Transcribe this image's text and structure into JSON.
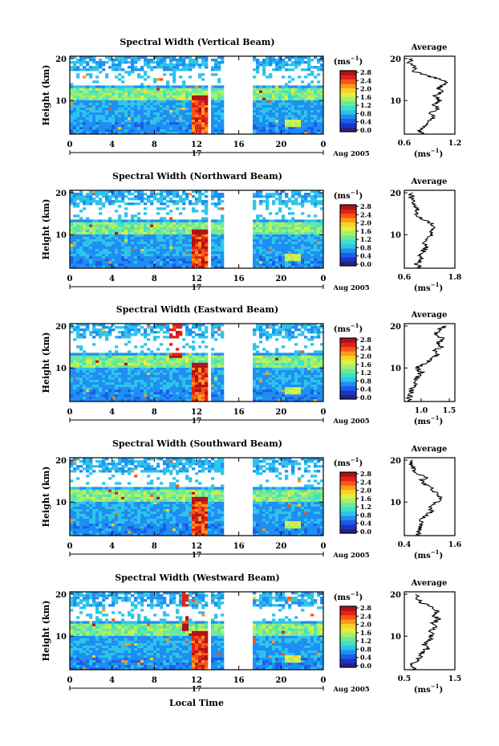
{
  "figure": {
    "shared": {
      "ylabel": "Height (km)",
      "avg_title": "Average",
      "avg_xlabel_base": "(ms",
      "avg_xlabel_exp": "−1",
      "avg_xlabel_close": ")",
      "cb_unit_base": "(ms",
      "cb_unit_exp": "−1",
      "cb_unit_close": ")",
      "time_ticks": [
        "0",
        "4",
        "8",
        "12",
        "16",
        "20",
        "0"
      ],
      "day_label": "17",
      "month_label": "Aug 2005",
      "height_ticks": [
        "10",
        "20"
      ],
      "colorbar_ticks": [
        "0.0",
        "0.4",
        "0.8",
        "1.2",
        "1.6",
        "2.0",
        "2.4",
        "2.8"
      ],
      "xlabel": "Local Time"
    },
    "colors": {
      "colormap": [
        "#27247e",
        "#1b33c8",
        "#1c5ce8",
        "#1f8ef2",
        "#2ec4ea",
        "#3fe0c8",
        "#6de89a",
        "#a6f06a",
        "#dff040",
        "#fbd226",
        "#fd9a1c",
        "#f85616",
        "#e0221a",
        "#b01218"
      ]
    }
  },
  "chart_data": [
    {
      "type": "heatmap",
      "title": "Spectral Width (Vertical Beam)",
      "x_range_hours": [
        0,
        24
      ],
      "y_range_km": [
        2,
        20
      ],
      "value_range": [
        0.0,
        2.8
      ],
      "data_gap_hours": [
        [
          13.1,
          13.3
        ],
        [
          14.5,
          17.3
        ]
      ],
      "average_profile": {
        "xticks": [
          "0.6",
          "1.2"
        ],
        "xlim": [
          0.6,
          1.2
        ],
        "height_km": [
          2,
          3,
          4,
          5,
          6,
          7,
          8,
          9,
          10,
          11,
          12,
          13,
          14,
          15,
          16,
          17,
          18,
          19,
          20
        ],
        "width_ms": [
          0.82,
          0.78,
          0.86,
          0.9,
          0.95,
          0.92,
          1.0,
          0.94,
          1.02,
          0.96,
          1.05,
          1.0,
          1.1,
          1.05,
          0.86,
          0.72,
          0.74,
          0.66,
          0.7
        ]
      }
    },
    {
      "type": "heatmap",
      "title": "Spectral Width (Northward Beam)",
      "x_range_hours": [
        0,
        24
      ],
      "y_range_km": [
        2,
        20
      ],
      "value_range": [
        0.0,
        2.8
      ],
      "data_gap_hours": [
        [
          13.1,
          13.3
        ],
        [
          14.5,
          17.3
        ]
      ],
      "average_profile": {
        "xticks": [
          "0.6",
          "1.8"
        ],
        "xlim": [
          0.6,
          1.8
        ],
        "height_km": [
          2,
          3,
          4,
          5,
          6,
          7,
          8,
          9,
          10,
          11,
          12,
          13,
          14,
          15,
          16,
          17,
          18,
          19,
          20
        ],
        "width_ms": [
          0.95,
          0.9,
          1.0,
          0.98,
          1.05,
          1.12,
          1.1,
          1.18,
          1.28,
          1.22,
          1.35,
          1.15,
          0.98,
          0.85,
          0.9,
          0.8,
          0.85,
          0.75,
          0.8
        ]
      }
    },
    {
      "type": "heatmap",
      "title": "Spectral Width (Eastward Beam)",
      "x_range_hours": [
        0,
        24
      ],
      "y_range_km": [
        2,
        20
      ],
      "value_range": [
        0.0,
        2.8
      ],
      "data_gap_hours": [
        [
          13.1,
          13.3
        ],
        [
          14.5,
          17.3
        ]
      ],
      "average_profile": {
        "xticks": [
          "1.0",
          "1.5"
        ],
        "xlim": [
          0.7,
          1.6
        ],
        "height_km": [
          2,
          3,
          4,
          5,
          6,
          7,
          8,
          9,
          10,
          11,
          12,
          13,
          14,
          15,
          16,
          17,
          18,
          19,
          20
        ],
        "width_ms": [
          0.82,
          0.78,
          0.85,
          0.8,
          0.9,
          0.88,
          0.95,
          1.0,
          0.92,
          1.05,
          1.15,
          1.3,
          1.22,
          1.38,
          1.28,
          1.4,
          1.25,
          1.3,
          1.45
        ]
      }
    },
    {
      "type": "heatmap",
      "title": "Spectral Width (Southward Beam)",
      "x_range_hours": [
        0,
        24
      ],
      "y_range_km": [
        2,
        20
      ],
      "value_range": [
        0.0,
        2.8
      ],
      "data_gap_hours": [
        [
          14.5,
          17.3
        ]
      ],
      "average_profile": {
        "xticks": [
          "0.4",
          "1.6"
        ],
        "xlim": [
          0.4,
          1.6
        ],
        "height_km": [
          2,
          3,
          4,
          5,
          6,
          7,
          8,
          9,
          10,
          11,
          12,
          13,
          14,
          15,
          16,
          17,
          18,
          19,
          20
        ],
        "width_ms": [
          0.75,
          0.72,
          0.78,
          0.8,
          0.82,
          0.95,
          1.05,
          0.98,
          1.18,
          1.3,
          1.2,
          1.05,
          0.95,
          0.8,
          0.9,
          0.7,
          0.62,
          0.58,
          0.6
        ]
      }
    },
    {
      "type": "heatmap",
      "title": "Spectral Width (Westward Beam)",
      "x_range_hours": [
        0,
        24
      ],
      "y_range_km": [
        2,
        20
      ],
      "value_range": [
        0.0,
        2.8
      ],
      "data_gap_hours": [
        [
          13.1,
          13.3
        ],
        [
          14.5,
          17.3
        ]
      ],
      "average_profile": {
        "xticks": [
          "0.5",
          "1.5"
        ],
        "xlim": [
          0.5,
          1.5
        ],
        "height_km": [
          2,
          3,
          4,
          5,
          6,
          7,
          8,
          9,
          10,
          11,
          12,
          13,
          14,
          15,
          16,
          17,
          18,
          19,
          20
        ],
        "width_ms": [
          0.7,
          0.62,
          0.75,
          0.8,
          0.85,
          0.95,
          0.9,
          1.0,
          1.05,
          1.0,
          1.1,
          1.05,
          1.2,
          1.08,
          1.15,
          1.0,
          0.85,
          0.75,
          0.72
        ]
      }
    }
  ]
}
